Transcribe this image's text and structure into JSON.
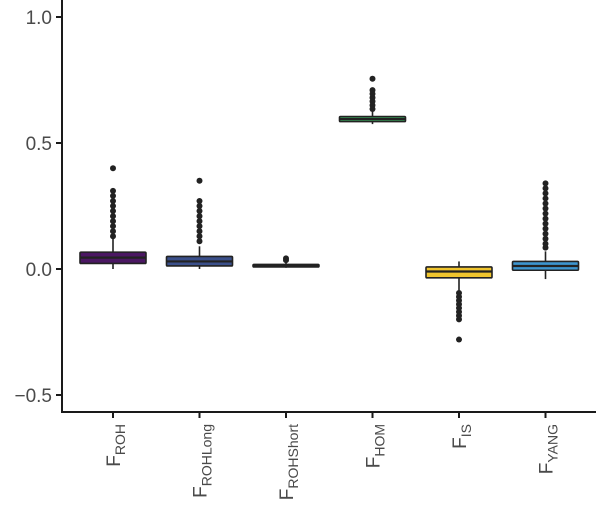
{
  "chart_data": {
    "type": "boxplot",
    "title": "",
    "xlabel": "",
    "ylabel": "",
    "ylim": [
      -0.55,
      1.05
    ],
    "y_ticks": [
      {
        "value": 1.0,
        "label": "1.0"
      },
      {
        "value": 0.5,
        "label": "0.5"
      },
      {
        "value": 0.0,
        "label": "0.0"
      },
      {
        "value": -0.5,
        "label": "−0.5"
      }
    ],
    "grid": false,
    "legend": "none",
    "categories": [
      {
        "base": "F",
        "sub": "ROH",
        "color": "#4B1763",
        "q1": 0.022,
        "median": 0.045,
        "q3": 0.067,
        "whisker_low": 0.0,
        "whisker_high": 0.12,
        "outliers": [
          0.13,
          0.15,
          0.17,
          0.19,
          0.21,
          0.23,
          0.25,
          0.27,
          0.29,
          0.31,
          0.4
        ]
      },
      {
        "base": "F",
        "sub": "ROHLong",
        "color": "#3A4F8A",
        "q1": 0.012,
        "median": 0.03,
        "q3": 0.05,
        "whisker_low": 0.0,
        "whisker_high": 0.09,
        "outliers": [
          0.11,
          0.13,
          0.15,
          0.17,
          0.19,
          0.21,
          0.23,
          0.25,
          0.27,
          0.35
        ]
      },
      {
        "base": "F",
        "sub": "ROHShort",
        "color": "#2A7A83",
        "q1": 0.008,
        "median": 0.013,
        "q3": 0.018,
        "whisker_low": 0.005,
        "whisker_high": 0.025,
        "outliers": [
          0.035,
          0.042
        ]
      },
      {
        "base": "F",
        "sub": "HOM",
        "color": "#3BA55C",
        "q1": 0.585,
        "median": 0.595,
        "q3": 0.605,
        "whisker_low": 0.575,
        "whisker_high": 0.625,
        "outliers": [
          0.635,
          0.65,
          0.665,
          0.68,
          0.695,
          0.71,
          0.755
        ]
      },
      {
        "base": "F",
        "sub": "IS",
        "color": "#F0C52E",
        "q1": -0.035,
        "median": -0.01,
        "q3": 0.008,
        "whisker_low": -0.085,
        "whisker_high": 0.03,
        "outliers": [
          -0.095,
          -0.11,
          -0.125,
          -0.14,
          -0.155,
          -0.17,
          -0.185,
          -0.2,
          -0.28
        ]
      },
      {
        "base": "F",
        "sub": "YANG",
        "color": "#3D95CF",
        "q1": -0.005,
        "median": 0.012,
        "q3": 0.03,
        "whisker_low": -0.04,
        "whisker_high": 0.07,
        "outliers": [
          0.085,
          0.1,
          0.12,
          0.14,
          0.16,
          0.18,
          0.2,
          0.22,
          0.24,
          0.26,
          0.28,
          0.3,
          0.32,
          0.34
        ]
      }
    ]
  }
}
